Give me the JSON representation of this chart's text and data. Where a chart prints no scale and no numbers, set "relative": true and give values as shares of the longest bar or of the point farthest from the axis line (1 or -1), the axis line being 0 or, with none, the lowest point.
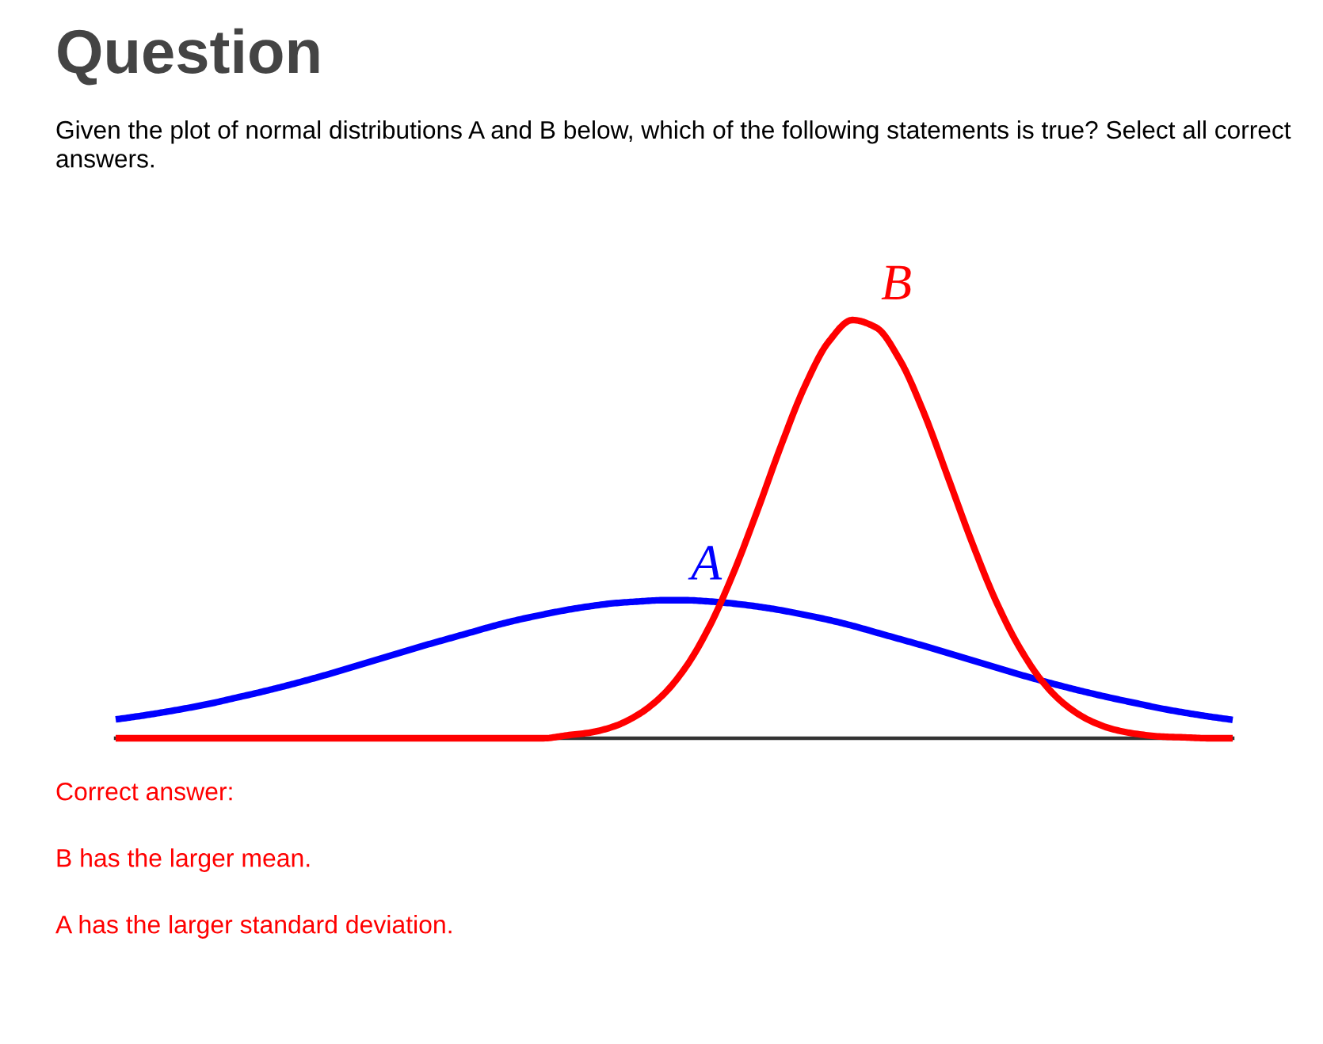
{
  "chart_data": {
    "type": "line",
    "title": "Question",
    "subtitle": "Given the plot of normal distributions A and B below, which of the following statements is true? Select all correct answers.",
    "relative": true,
    "annotations": [
      "Correct answer:",
      "B has the larger mean.",
      "A has the larger standard deviation."
    ],
    "categories": [
      null,
      null,
      null,
      null,
      null,
      null,
      null,
      null,
      null,
      null,
      null,
      null,
      null,
      null,
      null,
      null,
      null,
      null,
      null,
      null,
      null,
      null,
      null,
      null,
      null,
      null,
      null,
      null,
      null,
      null,
      null,
      null,
      null,
      null,
      null,
      null,
      null,
      null,
      null,
      null,
      null,
      null,
      null,
      null,
      null,
      null,
      null,
      null
    ],
    "series": [
      {
        "name": "A",
        "color": "#0000ff",
        "values": [
          0.045,
          0.053,
          0.062,
          0.072,
          0.083,
          0.096,
          0.109,
          0.123,
          0.138,
          0.154,
          0.171,
          0.188,
          0.205,
          0.222,
          0.238,
          0.254,
          0.27,
          0.284,
          0.296,
          0.307,
          0.316,
          0.323,
          0.327,
          0.33,
          0.33,
          0.327,
          0.322,
          0.315,
          0.306,
          0.295,
          0.283,
          0.269,
          0.253,
          0.237,
          0.221,
          0.204,
          0.187,
          0.17,
          0.153,
          0.137,
          0.122,
          0.108,
          0.095,
          0.083,
          0.071,
          0.061,
          0.052,
          0.044
        ]
      },
      {
        "name": "B",
        "color": "#ff0000",
        "values": [
          0,
          0,
          0,
          0,
          0,
          0,
          0,
          0,
          0,
          0,
          0,
          0,
          0,
          0,
          0,
          0,
          0,
          0,
          0,
          0.007,
          0.014,
          0.029,
          0.057,
          0.102,
          0.171,
          0.269,
          0.396,
          0.544,
          0.7,
          0.842,
          0.948,
          1,
          0.982,
          0.904,
          0.779,
          0.627,
          0.473,
          0.333,
          0.22,
          0.135,
          0.078,
          0.042,
          0.021,
          0.01,
          0.004,
          0.002,
          0,
          0
        ]
      }
    ]
  }
}
